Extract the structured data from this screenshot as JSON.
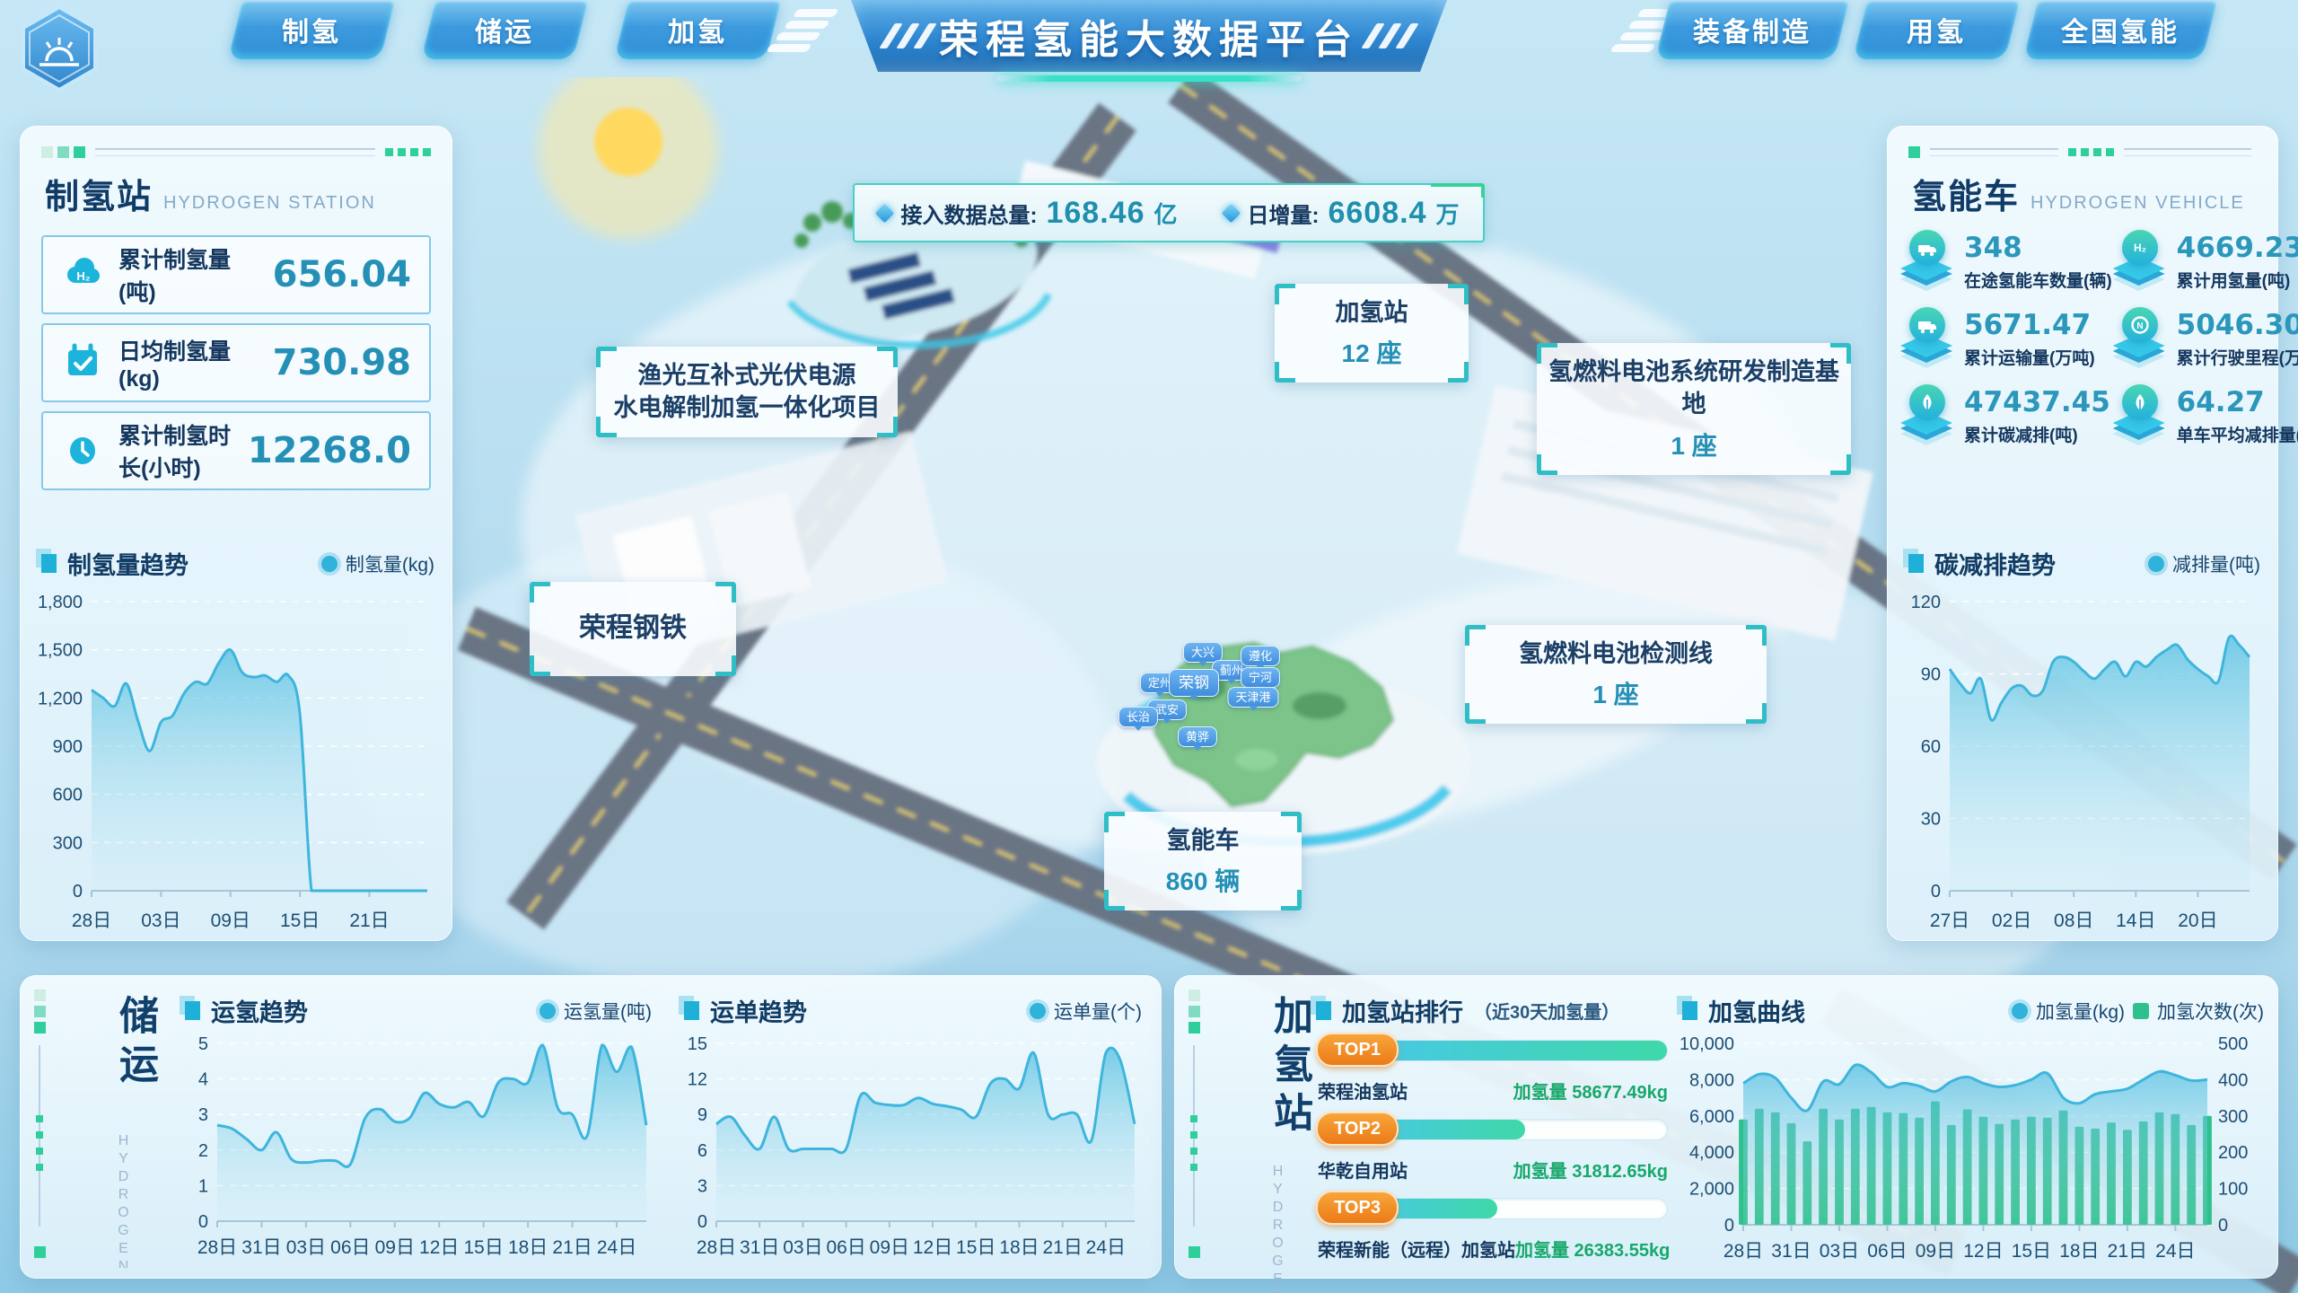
{
  "colors": {
    "accent_cyan": "#1fb0d8",
    "accent_green": "#2ecf9a",
    "value_teal": "#2590b6",
    "navy": "#14375e",
    "bar_green": "#2fc08d",
    "rank_orange": "#f08c1e",
    "rank_value_green": "#17a86b",
    "line_blue": "#3eb5dc"
  },
  "header": {
    "title": "荣程氢能大数据平台",
    "tabs_left": [
      "制氢",
      "储运",
      "加氢"
    ],
    "tabs_right": [
      "装备制造",
      "用氢",
      "全国氢能"
    ]
  },
  "data_badge": {
    "total_label": "接入数据总量:",
    "total_value": "168.46",
    "total_unit": "亿",
    "daily_label": "日增量:",
    "daily_value": "6608.4",
    "daily_unit": "万"
  },
  "scene": {
    "tags": [
      {
        "line1": "渔光互补式光伏电源",
        "line2": "水电解制加氢一体化项目"
      },
      {
        "line1": "加氢站",
        "value": "12 座"
      },
      {
        "line1": "氢燃料电池系统研发制造基地",
        "value": "1 座"
      },
      {
        "line1": "荣程钢铁"
      },
      {
        "line1": "氢燃料电池检测线",
        "value": "1 座"
      },
      {
        "line1": "氢能车",
        "value": "860 辆"
      }
    ],
    "map_pins": [
      "定州",
      "大兴",
      "蓟州",
      "遵化",
      "宁河",
      "天津港",
      "荣钢",
      "武安",
      "长治",
      "黄骅"
    ]
  },
  "production_panel": {
    "title": "制氢站",
    "subtitle": "HYDROGEN STATION",
    "stats": [
      {
        "icon": "h2-cloud-icon",
        "label": "累计制氢量(吨)",
        "value": "656.04"
      },
      {
        "icon": "calendar-check-icon",
        "label": "日均制氢量(kg)",
        "value": "730.98"
      },
      {
        "icon": "clock-icon",
        "label": "累计制氢时长(小时)",
        "value": "12268.0"
      }
    ],
    "chart_title": "制氢量趋势",
    "legend": "制氢量(kg)"
  },
  "vehicle_panel": {
    "title": "氢能车",
    "subtitle": "HYDROGEN VEHICLE",
    "stats": [
      {
        "icon": "truck-icon",
        "value": "348",
        "label": "在途氢能车数量(辆)"
      },
      {
        "icon": "h2-cloud-icon",
        "value": "4669.23",
        "label": "累计用氢量(吨)"
      },
      {
        "icon": "transport-truck-icon",
        "value": "5671.47",
        "label": "累计运输量(万吨)"
      },
      {
        "icon": "mileage-gauge-icon",
        "value": "5046.30",
        "label": "累计行驶里程(万公里)"
      },
      {
        "icon": "leaf-icon",
        "value": "47437.45",
        "label": "累计碳减排(吨)"
      },
      {
        "icon": "leaf-icon",
        "value": "64.27",
        "label": "单车平均减排量(吨)"
      }
    ],
    "chart_title": "碳减排趋势",
    "legend": "减排量(吨)"
  },
  "storage_panel": {
    "title": "储运",
    "subtitle": "HYDROGEN STORAGE",
    "charts": [
      {
        "title": "运氢趋势",
        "legend": "运氢量(吨)"
      },
      {
        "title": "运单趋势",
        "legend": "运单量(个)"
      }
    ]
  },
  "hydrogenation_panel": {
    "title": "加氢站",
    "subtitle": "HYDROGENATION",
    "ranking": {
      "title": "加氢站排行",
      "subtitle": "（近30天加氢量）",
      "items": [
        {
          "rank": "TOP1",
          "station": "荣程油氢站",
          "amount": "加氢量 58677.49kg",
          "percent": 100
        },
        {
          "rank": "TOP2",
          "station": "华乾自用站",
          "amount": "加氢量 31812.65kg",
          "percent": 54
        },
        {
          "rank": "TOP3",
          "station": "荣程新能（远程）加氢站",
          "amount": "加氢量 26383.55kg",
          "percent": 45
        }
      ]
    },
    "curve": {
      "title": "加氢曲线",
      "legend_line": "加氢量(kg)",
      "legend_bar": "加氢次数(次)"
    }
  },
  "chart_data": [
    {
      "id": "chart-production",
      "type": "area",
      "x_count": 30,
      "tick_step": 6,
      "x_ticks": [
        "28日",
        "03日",
        "09日",
        "15日",
        "21日"
      ],
      "y_left": {
        "max": 1800,
        "labels": [
          "0",
          "300",
          "600",
          "900",
          "1,200",
          "1,500",
          "1,800"
        ]
      },
      "values": [
        1250,
        1200,
        1150,
        1290,
        1060,
        870,
        1050,
        1090,
        1230,
        1300,
        1290,
        1420,
        1500,
        1360,
        1330,
        1340,
        1300,
        1340,
        1100,
        0,
        0,
        0,
        0,
        0,
        0,
        0,
        0,
        0,
        0,
        0
      ]
    },
    {
      "id": "chart-carbon",
      "type": "area",
      "x_count": 30,
      "tick_step": 6,
      "x_ticks": [
        "27日",
        "02日",
        "08日",
        "14日",
        "20日"
      ],
      "y_left": {
        "max": 120,
        "labels": [
          "0",
          "30",
          "60",
          "90",
          "120"
        ]
      },
      "values": [
        92,
        86,
        82,
        88,
        71,
        78,
        84,
        85,
        81,
        83,
        95,
        97,
        95,
        91,
        88,
        92,
        95,
        89,
        95,
        93,
        97,
        100,
        102,
        96,
        92,
        89,
        87,
        105,
        102,
        97
      ]
    },
    {
      "id": "chart-transport",
      "type": "area",
      "x_count": 30,
      "tick_step": 3,
      "x_ticks": [
        "28日",
        "31日",
        "03日",
        "06日",
        "09日",
        "12日",
        "15日",
        "18日",
        "21日",
        "24日"
      ],
      "y_left": {
        "max": 5,
        "labels": [
          "0",
          "1",
          "2",
          "3",
          "4",
          "5"
        ]
      },
      "values": [
        2.7,
        2.6,
        2.3,
        2.0,
        2.5,
        1.75,
        1.65,
        1.7,
        1.7,
        1.6,
        2.9,
        3.15,
        2.8,
        2.9,
        3.6,
        3.3,
        3.2,
        3.35,
        2.95,
        3.9,
        4.0,
        3.9,
        4.95,
        3.2,
        3.0,
        2.4,
        4.95,
        4.2,
        4.9,
        2.7
      ]
    },
    {
      "id": "chart-waybill",
      "type": "area",
      "x_count": 30,
      "tick_step": 3,
      "x_ticks": [
        "28日",
        "31日",
        "03日",
        "06日",
        "09日",
        "12日",
        "15日",
        "18日",
        "21日",
        "24日"
      ],
      "y_left": {
        "max": 15,
        "labels": [
          "0",
          "3",
          "6",
          "9",
          "12",
          "15"
        ]
      },
      "values": [
        8.2,
        8.8,
        7.2,
        6.1,
        8.8,
        6.1,
        6.1,
        6.1,
        6.1,
        6.1,
        10.6,
        10.0,
        9.8,
        9.8,
        10.4,
        9.9,
        9.7,
        9.4,
        8.8,
        11.6,
        12.0,
        11.2,
        14.2,
        9.0,
        9.0,
        9.0,
        6.8,
        14.2,
        13.6,
        8.2
      ]
    },
    {
      "id": "chart-refuel",
      "type": "area+bar",
      "x_count": 30,
      "tick_step": 3,
      "x_ticks": [
        "28日",
        "31日",
        "03日",
        "06日",
        "09日",
        "12日",
        "15日",
        "18日",
        "21日",
        "24日"
      ],
      "y_left": {
        "max": 10000,
        "labels": [
          "0",
          "2,000",
          "4,000",
          "6,000",
          "8,000",
          "10,000"
        ]
      },
      "y_right": {
        "max": 500,
        "labels": [
          "0",
          "100",
          "200",
          "300",
          "400",
          "500"
        ]
      },
      "bar_color": "#2fc08d",
      "area_values": [
        7800,
        8300,
        8100,
        7000,
        6300,
        7900,
        7750,
        8800,
        8400,
        7600,
        7800,
        7650,
        7350,
        7900,
        8150,
        7800,
        7600,
        7700,
        8000,
        8350,
        7000,
        6700,
        7200,
        7350,
        7500,
        8000,
        8450,
        8250,
        7950,
        8000
      ],
      "bar_values": [
        290,
        320,
        310,
        280,
        230,
        320,
        290,
        320,
        325,
        310,
        308,
        295,
        340,
        275,
        318,
        298,
        278,
        290,
        298,
        295,
        315,
        270,
        265,
        282,
        262,
        285,
        310,
        305,
        275,
        300
      ]
    }
  ]
}
